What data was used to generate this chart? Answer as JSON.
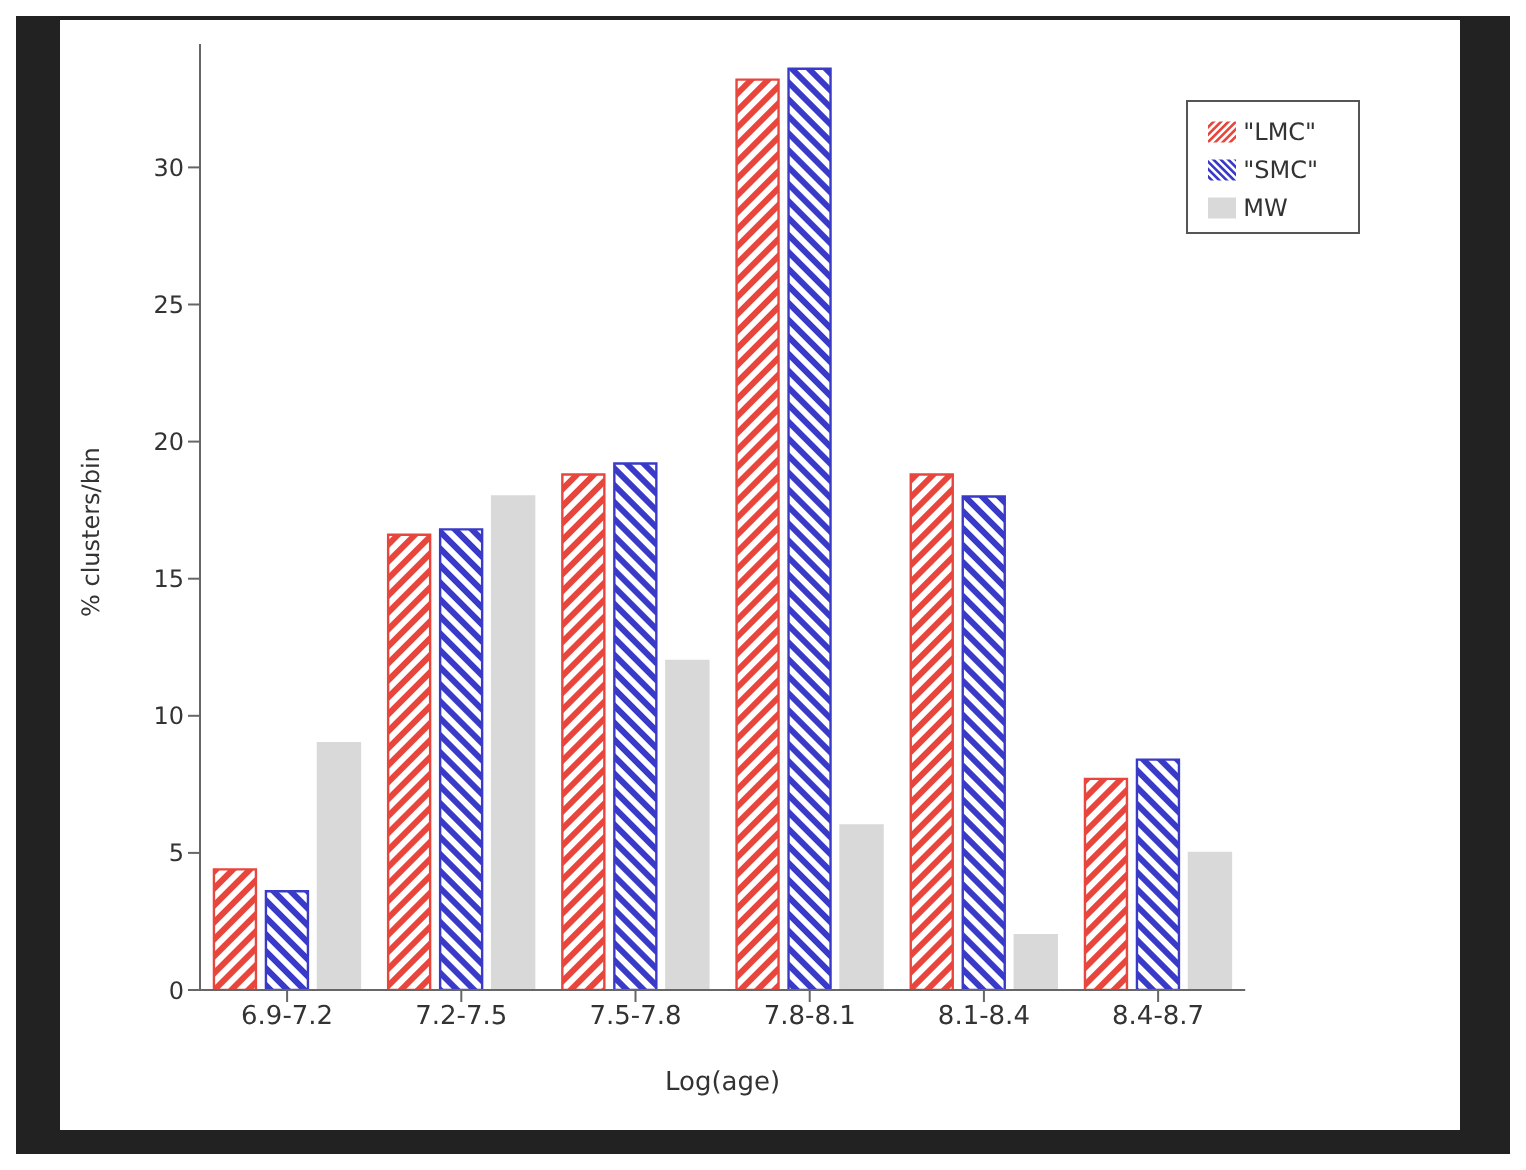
{
  "chart_data": {
    "type": "bar",
    "xlabel": "Log(age)",
    "ylabel": "% clusters/bin",
    "categories": [
      "6.9-7.2",
      "7.2-7.5",
      "7.5-7.8",
      "7.8-8.1",
      "8.1-8.4",
      "8.4-8.7"
    ],
    "series": [
      {
        "name": "\"LMC\"",
        "color": "#e8463c",
        "values": [
          4.4,
          16.6,
          18.8,
          33.2,
          18.8,
          7.7
        ]
      },
      {
        "name": "\"SMC\"",
        "color": "#3a3ac8",
        "values": [
          3.6,
          16.8,
          19.2,
          33.6,
          18,
          8.4
        ]
      },
      {
        "name": "MW",
        "color": "#d9d9d9",
        "values": [
          9,
          18,
          12,
          6,
          2,
          5
        ]
      }
    ],
    "ylim": [
      0,
      34.5
    ],
    "yticks": [
      0,
      5,
      10,
      15,
      20,
      25,
      30
    ],
    "grid": false,
    "legend": "top right"
  }
}
